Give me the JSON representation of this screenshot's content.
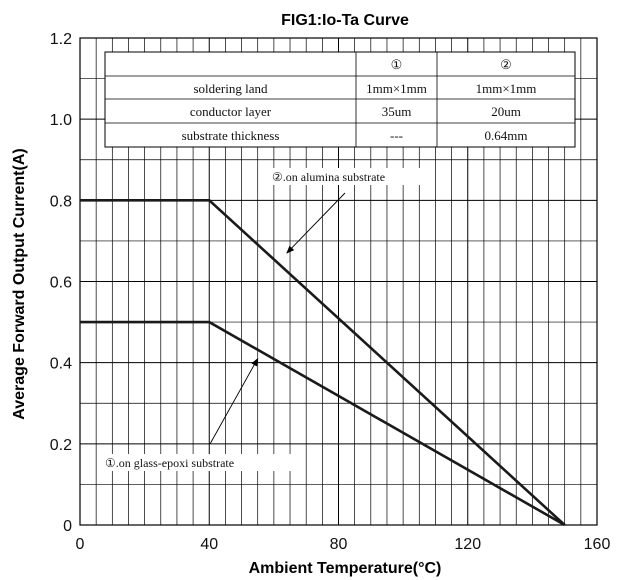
{
  "chart_data": {
    "type": "line",
    "title": "FIG1:Io-Ta Curve",
    "xlabel": "Ambient Temperature(°C)",
    "ylabel": "Average Forward Output Current(A)",
    "xlim": [
      0,
      160
    ],
    "ylim": [
      0,
      1.2
    ],
    "x_ticks": [
      "0",
      "40",
      "80",
      "120",
      "160"
    ],
    "y_ticks": [
      "0",
      "0.2",
      "0.4",
      "0.6",
      "0.8",
      "1.0",
      "1.2"
    ],
    "grid": true,
    "series": [
      {
        "name": "②.on alumina substrate",
        "x": [
          0,
          40,
          150
        ],
        "y": [
          0.8,
          0.8,
          0
        ]
      },
      {
        "name": "①.on glass-epoxi substrate",
        "x": [
          0,
          40,
          150
        ],
        "y": [
          0.5,
          0.5,
          0
        ]
      }
    ],
    "annotations": [
      {
        "text": "②.on alumina substrate",
        "arrow_to": {
          "x": 64,
          "y": 0.67
        }
      },
      {
        "text": "①.on glass-epoxi substrate",
        "arrow_to": {
          "x": 55,
          "y": 0.41
        }
      }
    ],
    "table": {
      "headers": [
        "",
        "①",
        "②"
      ],
      "rows": [
        [
          "soldering land",
          "1mm×1mm",
          "1mm×1mm"
        ],
        [
          "conductor layer",
          "35um",
          "20um"
        ],
        [
          "substrate thickness",
          "---",
          "0.64mm"
        ]
      ]
    }
  }
}
